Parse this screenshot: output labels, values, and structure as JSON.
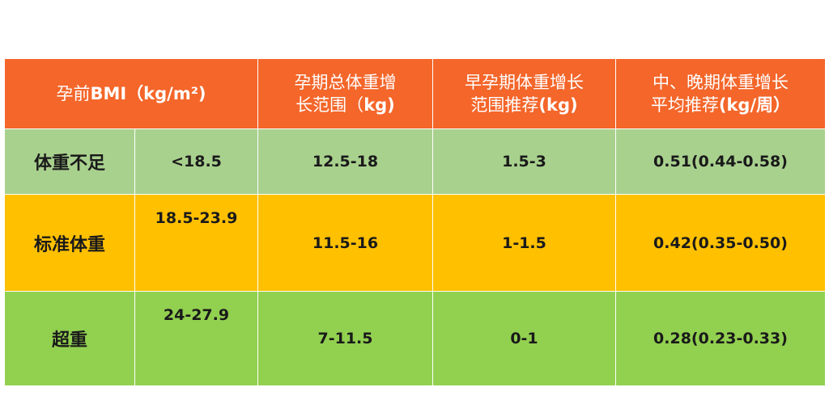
{
  "header": {
    "bmi_label_prefix": "孕前",
    "bmi_label_main": "BMI（kg/m²)",
    "total_gain_line1": "孕期总体重增",
    "total_gain_line2": "长范围（",
    "total_gain_unit": "kg)",
    "early_gain_line1": "早孕期体重增长",
    "early_gain_line2": "范围推荐",
    "early_gain_unit": "(kg)",
    "late_gain_line1": "中、晚期体重增长",
    "late_gain_line2": "平均推荐",
    "late_gain_unit": "(kg/周）"
  },
  "rows": [
    {
      "category": "体重不足",
      "bmi": "<18.5",
      "total": "12.5-18",
      "early": "1.5-3",
      "late": "0.51(0.44-0.58)"
    },
    {
      "category": "标准体重",
      "bmi": "18.5-23.9",
      "total": "11.5-16",
      "early": "1-1.5",
      "late": "0.42(0.35-0.50)"
    },
    {
      "category": "超重",
      "bmi": "24-27.9",
      "total": "7-11.5",
      "early": "0-1",
      "late": "0.28(0.23-0.33)"
    }
  ],
  "colors": {
    "header_bg": "#f4662a",
    "row_underweight": "#a9d18e",
    "row_normal": "#ffc000",
    "row_overweight": "#92d050"
  }
}
